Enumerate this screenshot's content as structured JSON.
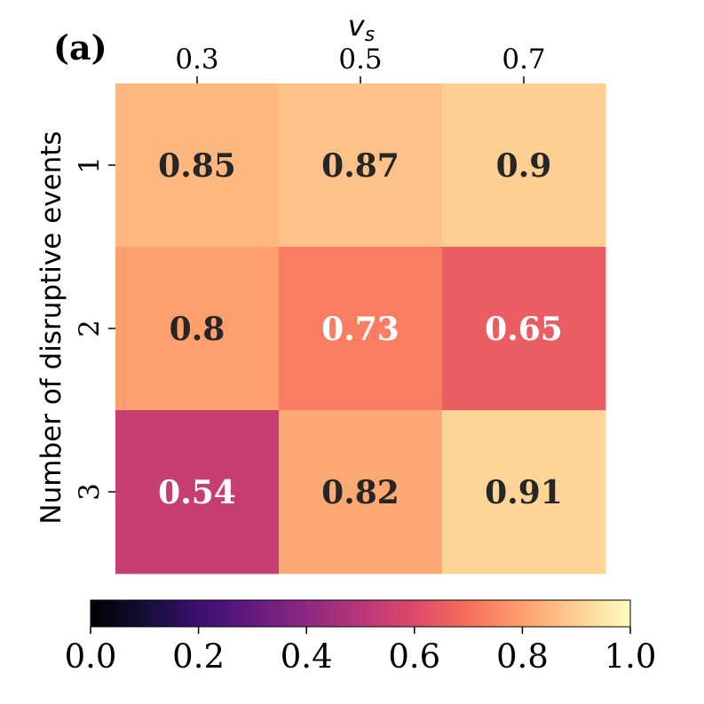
{
  "chart_data": {
    "type": "heatmap",
    "panel_label": "(a)",
    "xlabel": "v_s",
    "ylabel": "Number of disruptive events",
    "x_categories": [
      "0.3",
      "0.5",
      "0.7"
    ],
    "y_categories": [
      "1",
      "2",
      "3"
    ],
    "values": [
      [
        0.85,
        0.87,
        0.9
      ],
      [
        0.8,
        0.73,
        0.65
      ],
      [
        0.54,
        0.82,
        0.91
      ]
    ],
    "cell_labels": [
      [
        "0.85",
        "0.87",
        "0.9"
      ],
      [
        "0.8",
        "0.73",
        "0.65"
      ],
      [
        "0.54",
        "0.82",
        "0.91"
      ]
    ],
    "colormap": "magma",
    "vmin": 0.0,
    "vmax": 1.0,
    "colorbar": {
      "orientation": "horizontal",
      "ticks": [
        "0.0",
        "0.2",
        "0.4",
        "0.6",
        "0.8",
        "1.0"
      ]
    },
    "colors": {
      "dark_text": "#262626",
      "light_text": "#ffffff"
    }
  }
}
